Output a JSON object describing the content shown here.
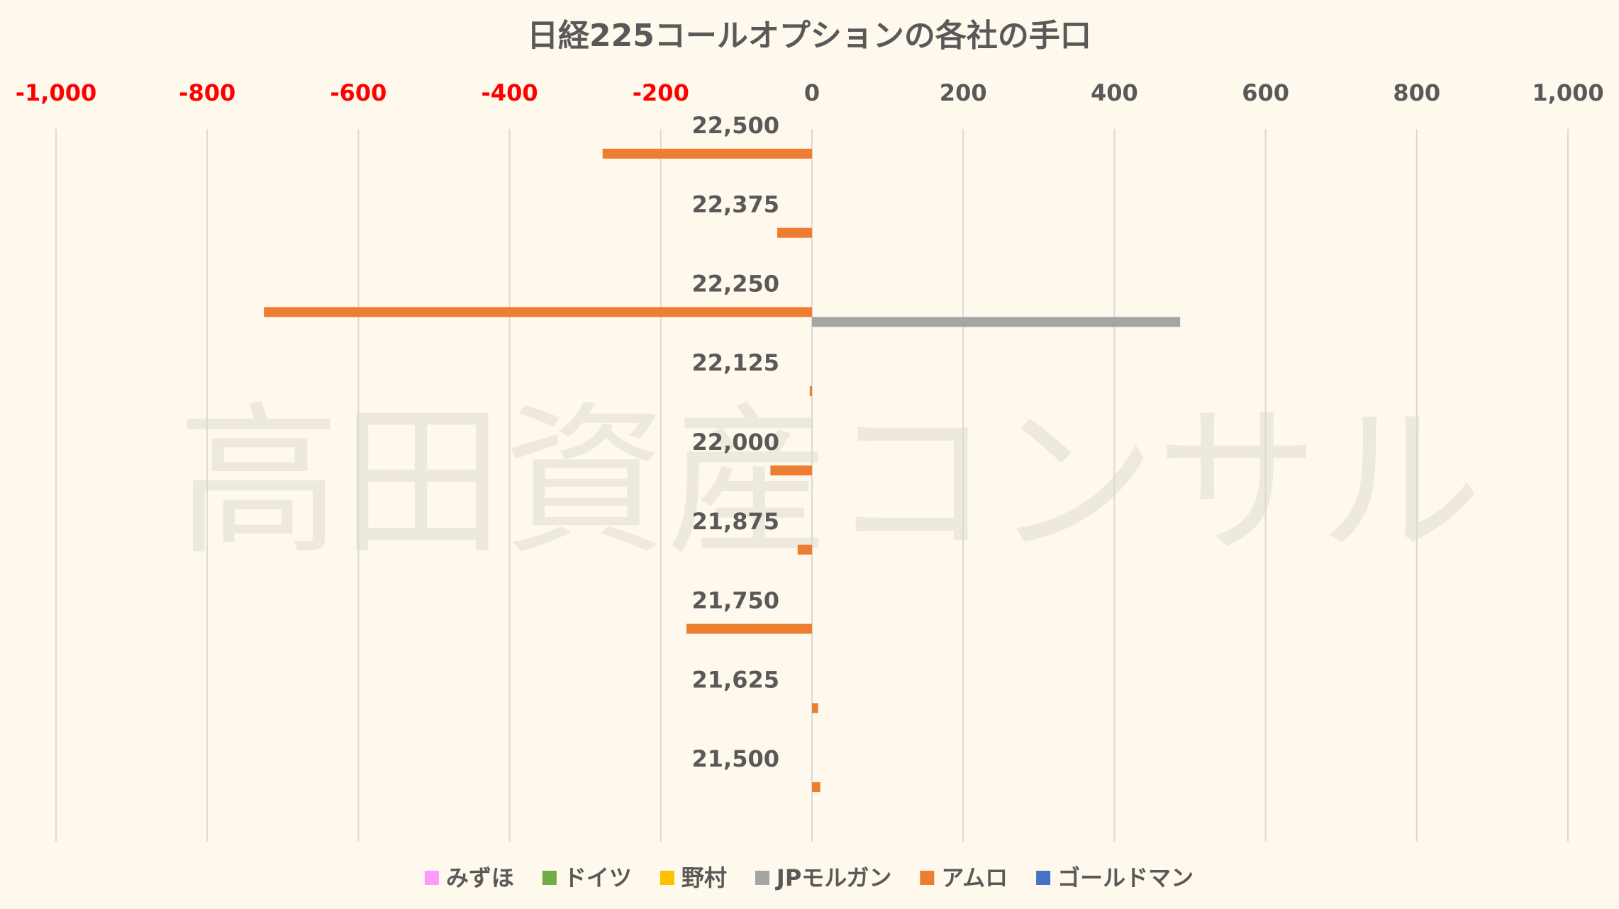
{
  "chart_data": {
    "type": "bar",
    "orientation": "horizontal",
    "title": "日経225コールオプションの各社の手口",
    "watermark": "高田資産コンサル",
    "x_axis_position": "top",
    "xlim": [
      -1000,
      1000
    ],
    "x_ticks": [
      -1000,
      -800,
      -600,
      -400,
      -200,
      0,
      200,
      400,
      600,
      800,
      1000
    ],
    "x_tick_labels": [
      "-1,000",
      "-800",
      "-600",
      "-400",
      "-200",
      "0",
      "200",
      "400",
      "600",
      "800",
      "1,000"
    ],
    "negative_tick_color": "#ff0000",
    "positive_tick_color": "#595959",
    "gridlines": true,
    "legend_position": "bottom",
    "categories": [
      "22,500",
      "22,375",
      "22,250",
      "22,125",
      "22,000",
      "21,875",
      "21,750",
      "21,625",
      "21,500"
    ],
    "series": [
      {
        "name": "みずほ",
        "color": "#ff99ff",
        "values": [
          0,
          0,
          0,
          0,
          0,
          0,
          0,
          0,
          0
        ]
      },
      {
        "name": "ドイツ",
        "color": "#70ad47",
        "values": [
          0,
          0,
          0,
          0,
          0,
          0,
          0,
          0,
          0
        ]
      },
      {
        "name": "野村",
        "color": "#ffc000",
        "values": [
          0,
          0,
          0,
          0,
          0,
          0,
          0,
          0,
          0
        ]
      },
      {
        "name": "JPモルガン",
        "color": "#a5a5a5",
        "values": [
          0,
          0,
          487,
          0,
          0,
          0,
          0,
          0,
          0
        ]
      },
      {
        "name": "アムロ",
        "color": "#ed7d31",
        "values": [
          -277,
          -46,
          -725,
          -3,
          -55,
          -19,
          -166,
          8,
          11
        ]
      },
      {
        "name": "ゴールドマン",
        "color": "#4472c4",
        "values": [
          0,
          0,
          0,
          0,
          0,
          0,
          0,
          0,
          0
        ]
      }
    ]
  }
}
